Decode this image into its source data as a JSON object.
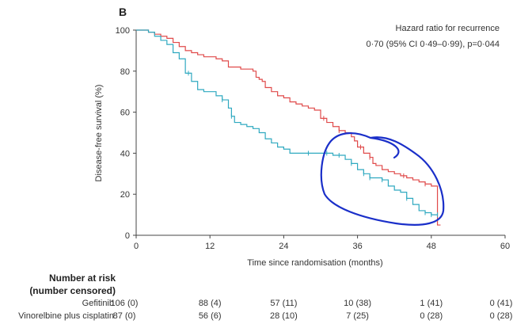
{
  "chart_data": {
    "type": "line",
    "panel_label": "B",
    "ylabel": "Disease-free survival (%)",
    "xlabel": "Time since randomisation (months)",
    "xlim": [
      0,
      60
    ],
    "ylim": [
      0,
      100
    ],
    "xticks": [
      0,
      12,
      24,
      36,
      48,
      60
    ],
    "yticks": [
      0,
      20,
      40,
      60,
      80,
      100
    ],
    "annotation": {
      "line1": "Hazard ratio for recurrence",
      "line2": "0·70 (95% CI 0·49–0·99), p=0·044"
    },
    "series": [
      {
        "name": "Gefitinib",
        "color": "#e04a4a",
        "points": [
          [
            0,
            100
          ],
          [
            2,
            99
          ],
          [
            3,
            98
          ],
          [
            4,
            97
          ],
          [
            5,
            96
          ],
          [
            6,
            94
          ],
          [
            7,
            92
          ],
          [
            8,
            90
          ],
          [
            9,
            89
          ],
          [
            10,
            88
          ],
          [
            11,
            87
          ],
          [
            12,
            87
          ],
          [
            13,
            86
          ],
          [
            14,
            85
          ],
          [
            15,
            82
          ],
          [
            16,
            82
          ],
          [
            17,
            81
          ],
          [
            18,
            81
          ],
          [
            19,
            80
          ],
          [
            19.5,
            77
          ],
          [
            20,
            76
          ],
          [
            20.5,
            75
          ],
          [
            21,
            72
          ],
          [
            22,
            70
          ],
          [
            23,
            68
          ],
          [
            24,
            67
          ],
          [
            25,
            65
          ],
          [
            26,
            64
          ],
          [
            27,
            63
          ],
          [
            28,
            62
          ],
          [
            29,
            61
          ],
          [
            30,
            57
          ],
          [
            31,
            55
          ],
          [
            32,
            53
          ],
          [
            33,
            51
          ],
          [
            34,
            50
          ],
          [
            35,
            48
          ],
          [
            35.5,
            46
          ],
          [
            36,
            43
          ],
          [
            37,
            40
          ],
          [
            38,
            38
          ],
          [
            38.5,
            35
          ],
          [
            39,
            34
          ],
          [
            40,
            32
          ],
          [
            41,
            31
          ],
          [
            42,
            30
          ],
          [
            43,
            29
          ],
          [
            44,
            28
          ],
          [
            45,
            27
          ],
          [
            46,
            26
          ],
          [
            47,
            25
          ],
          [
            48,
            24
          ],
          [
            49,
            5
          ],
          [
            49.5,
            5
          ]
        ]
      },
      {
        "name": "Vinorelbine plus cisplatin",
        "color": "#2fa9c0",
        "points": [
          [
            0,
            100
          ],
          [
            2,
            99
          ],
          [
            3,
            97
          ],
          [
            4,
            95
          ],
          [
            5,
            93
          ],
          [
            6,
            89
          ],
          [
            7,
            86
          ],
          [
            8,
            79
          ],
          [
            9,
            75
          ],
          [
            10,
            71
          ],
          [
            11,
            70
          ],
          [
            12,
            70
          ],
          [
            13,
            68
          ],
          [
            14,
            66
          ],
          [
            15,
            62
          ],
          [
            15.5,
            58
          ],
          [
            16,
            55
          ],
          [
            17,
            54
          ],
          [
            18,
            53
          ],
          [
            19,
            52
          ],
          [
            20,
            50
          ],
          [
            21,
            47
          ],
          [
            22,
            45
          ],
          [
            23,
            43
          ],
          [
            24,
            42
          ],
          [
            25,
            40
          ],
          [
            27,
            40
          ],
          [
            30,
            40
          ],
          [
            32,
            39
          ],
          [
            34,
            37
          ],
          [
            35,
            35
          ],
          [
            36,
            32
          ],
          [
            37,
            30
          ],
          [
            38,
            28
          ],
          [
            40,
            27
          ],
          [
            41,
            24
          ],
          [
            42,
            22
          ],
          [
            43,
            21
          ],
          [
            44,
            18
          ],
          [
            45,
            15
          ],
          [
            46,
            12
          ],
          [
            47,
            11
          ],
          [
            48,
            10
          ],
          [
            49,
            10
          ]
        ]
      }
    ],
    "censor_marks": {
      "Gefitinib": [
        30.5,
        33,
        36.5,
        38,
        43.5,
        47
      ],
      "Vinorelbine plus cisplatin": [
        8.5,
        14,
        15.5,
        28,
        31,
        33,
        35,
        37,
        38,
        40,
        44,
        47,
        48,
        49
      ]
    }
  },
  "risk_table": {
    "title_line1": "Number at risk",
    "title_line2": "(number censored)",
    "rows": [
      {
        "label": "Gefitinib",
        "values": [
          "106 (0)",
          "88 (4)",
          "57 (11)",
          "10 (38)",
          "1 (41)",
          "0 (41)"
        ]
      },
      {
        "label": "Vinorelbine plus cisplatin",
        "values": [
          "87 (0)",
          "56 (6)",
          "28 (10)",
          "7 (25)",
          "0 (28)",
          "0 (28)"
        ]
      }
    ]
  },
  "overlay": {
    "description_color": "#1a2fc9"
  }
}
